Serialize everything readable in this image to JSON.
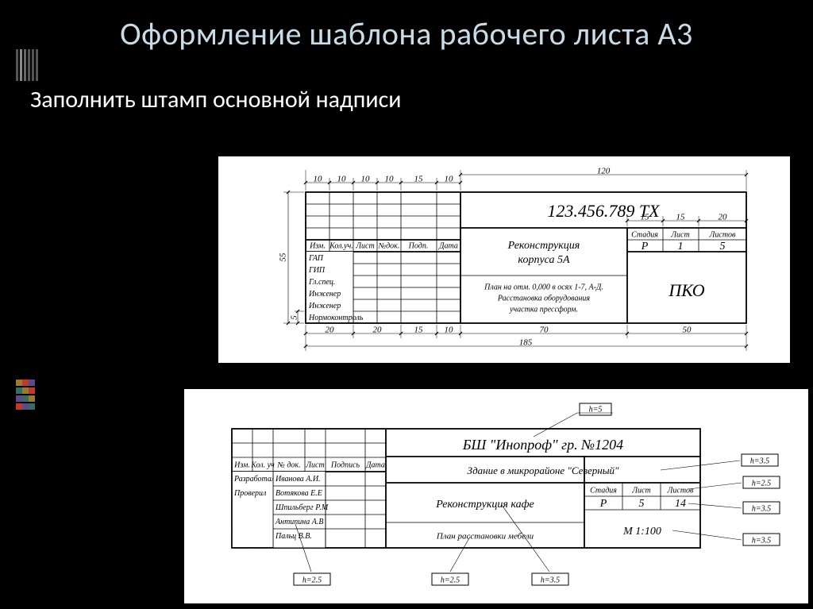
{
  "slide": {
    "title": "Оформление шаблона рабочего листа А3",
    "subtitle": "Заполнить штамп основной надписи",
    "title_color": "#c8dce8",
    "subtitle_color": "#ffffff",
    "background": "#000000"
  },
  "stamp1": {
    "dims_top": {
      "d1": "10",
      "d2": "10",
      "d3": "10",
      "d4": "10",
      "d5": "15",
      "d6": "10",
      "d7": "120"
    },
    "dims_left": {
      "total": "55",
      "bottom_row": "5"
    },
    "dims_bottom": {
      "d1": "20",
      "d2": "20",
      "d3": "15",
      "d4": "10",
      "d5": "70",
      "d6": "50",
      "total": "185"
    },
    "dims_right_top": {
      "d1": "15",
      "d2": "15",
      "d3": "20"
    },
    "col_headers": [
      "Изм.",
      "Кол.уч.",
      "Лист",
      "№док.",
      "Подп.",
      "Дата"
    ],
    "row_labels": [
      "ГАП",
      "ГИП",
      "Гл.спец.",
      "Инженер",
      "Инженер",
      "Нормоконтроль"
    ],
    "doc_number": "123.456.789 ТХ",
    "subtitle_headers": [
      "Стадия",
      "Лист",
      "Листов"
    ],
    "subtitle_values": [
      "Р",
      "1",
      "5"
    ],
    "project_line1": "Реконструкция",
    "project_line2": "корпуса 5А",
    "plan_line1": "План на отм. 0,000 в осях 1-7, А-Д.",
    "plan_line2": "Расстановка оборудования",
    "plan_line3": "участка прессформ.",
    "org": "ПКО"
  },
  "stamp2": {
    "col_headers": [
      "Изм.",
      "Кол. уч",
      "№ док.",
      "Лист",
      "Подпись",
      "Дата"
    ],
    "row_labels": [
      "Разработал",
      "Проверил",
      "",
      "",
      ""
    ],
    "names": [
      "Иванова А.И.",
      "Вотякова Е.Е",
      "Шпильберг Р.М",
      "Антипина А.В",
      "Пальц В.В."
    ],
    "title_line": "БШ \"Инопроф\" гр. №1204",
    "subtitle_line": "Здание в микрорайоне \"Северный\"",
    "project": "Реконструкция кафе",
    "plan": "План расстановки мебели",
    "table_headers": [
      "Стадия",
      "Лист",
      "Листов"
    ],
    "table_values": [
      "Р",
      "5",
      "14"
    ],
    "scale": "М 1:100",
    "h_labels": {
      "top": "h=5",
      "right1": "h=3.5",
      "right2": "h=2.5",
      "right3": "h=3.5",
      "right4": "h=3.5",
      "bot1": "h=2.5",
      "bot2": "h=2.5",
      "bot3": "h=3.5"
    }
  },
  "accent_colors": [
    "#9a7a2f",
    "#c0392b",
    "#5d4a8a",
    "#3a6a64"
  ]
}
